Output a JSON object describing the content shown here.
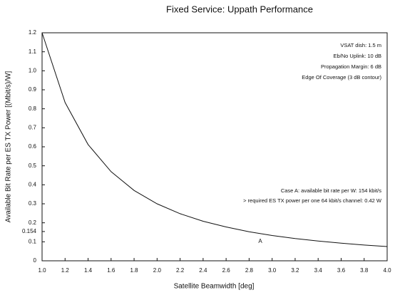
{
  "chart_data": {
    "type": "line",
    "title": "Fixed Service: Uppath Performance",
    "x_label": "Satellite Beamwidth [deg]",
    "y_label": "Available Bit Rate per ES TX Power [(Mbit/s)/W]",
    "x": [
      1.0,
      1.2,
      1.4,
      1.6,
      1.8,
      2.0,
      2.2,
      2.4,
      2.6,
      2.8,
      3.0,
      3.2,
      3.4,
      3.6,
      3.8,
      4.0
    ],
    "series": [
      {
        "name": "A",
        "color": "#111111",
        "values": [
          1.2,
          0.833,
          0.612,
          0.469,
          0.37,
          0.3,
          0.248,
          0.208,
          0.178,
          0.153,
          0.133,
          0.117,
          0.104,
          0.093,
          0.083,
          0.075
        ]
      }
    ],
    "xlim": [
      1.0,
      4.0
    ],
    "ylim": [
      0,
      1.2
    ],
    "xticks": [
      {
        "value": 1.0,
        "label": "1.0"
      },
      1.2,
      1.4,
      1.6,
      1.8,
      {
        "value": 2.0,
        "label": "2.0"
      },
      2.2,
      2.4,
      2.6,
      2.8,
      {
        "value": 3.0,
        "label": "3.0"
      },
      3.2,
      3.4,
      3.6,
      3.8,
      {
        "value": 4.0,
        "label": "4.0"
      }
    ],
    "yticks": [
      0,
      0.1,
      0.154,
      0.2,
      0.3,
      0.4,
      0.5,
      0.6,
      0.7,
      0.8,
      0.9,
      {
        "value": 1.0,
        "label": "1.0"
      },
      1.1,
      1.2
    ],
    "grid": false,
    "annotations_top": [
      "VSAT dish: 1.5 m",
      "Eb/No Uplink: 10 dB",
      "Propagation Margin: 6 dB",
      "Edge Of Coverage (3 dB contour)"
    ],
    "annotations_case": [
      "Case A: available bit rate per W: 154 kbit/s",
      "> required ES TX power per one 64 kbit/s channel: 0.42 W"
    ]
  }
}
